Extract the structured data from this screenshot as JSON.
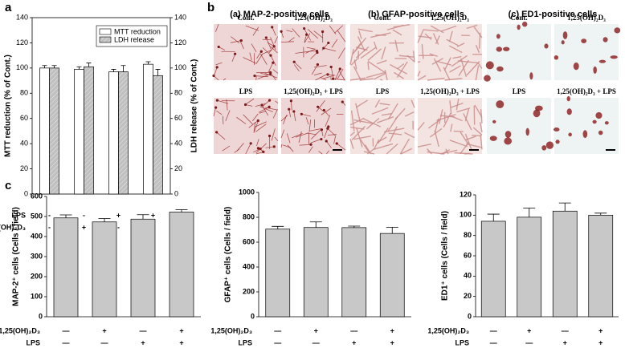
{
  "panels": [
    "a",
    "b",
    "c"
  ],
  "chart_data": [
    {
      "type": "bar",
      "ylabel": "MTT reduction (% of Cont.)",
      "y2label": "LDH release (% of Cont.)",
      "ylim": [
        0,
        140
      ],
      "yticks": [
        0,
        20,
        40,
        60,
        80,
        100,
        120,
        140
      ],
      "y2lim": [
        0,
        140
      ],
      "y2ticks": [
        0,
        20,
        40,
        60,
        80,
        100,
        120,
        140
      ],
      "legend": "upper right",
      "series": [
        {
          "name": "MTT reduction",
          "color": "#ffffff",
          "values": [
            100,
            99,
            97,
            103
          ],
          "errors": [
            2,
            2,
            2,
            2
          ]
        },
        {
          "name": "LDH release",
          "color": "#c0c0c0",
          "hatch": true,
          "axis": "y2",
          "values": [
            100,
            101,
            97,
            94
          ],
          "errors": [
            2,
            3,
            5,
            5
          ]
        }
      ],
      "rows": [
        {
          "label": "LPS",
          "marks": [
            "-",
            "-",
            "+",
            "+"
          ]
        },
        {
          "label": "1,25(OH)₂D₃",
          "marks": [
            "-",
            "+",
            "-",
            "+"
          ]
        }
      ]
    },
    {
      "type": "bar",
      "ylabel": "MAP-2⁺ cells (Cells / field)",
      "ylim": [
        0,
        600
      ],
      "yticks": [
        0,
        100,
        200,
        300,
        400,
        500,
        600
      ],
      "color": "#c8c8c8",
      "values": [
        493,
        473,
        487,
        522
      ],
      "errors": [
        15,
        17,
        22,
        12
      ],
      "rows": [
        {
          "label": "1,25(OH)₂D₃",
          "marks": [
            "—",
            "+",
            "—",
            "+"
          ]
        },
        {
          "label": "LPS",
          "marks": [
            "—",
            "—",
            "+",
            "+"
          ]
        }
      ]
    },
    {
      "type": "bar",
      "ylabel": "GFAP⁺ cells (Cells / field)",
      "ylim": [
        0,
        1000
      ],
      "yticks": [
        0,
        200,
        400,
        600,
        800,
        1000
      ],
      "color": "#c8c8c8",
      "values": [
        705,
        718,
        717,
        670
      ],
      "errors": [
        22,
        45,
        12,
        50
      ],
      "rows": [
        {
          "label": "1,25(OH)₂D₃",
          "marks": [
            "—",
            "+",
            "—",
            "+"
          ]
        },
        {
          "label": "LPS",
          "marks": [
            "—",
            "—",
            "+",
            "+"
          ]
        }
      ]
    },
    {
      "type": "bar",
      "ylabel": "ED1⁺ cells (Cells / field)",
      "ylim": [
        0,
        120
      ],
      "yticks": [
        0,
        20,
        40,
        60,
        80,
        100,
        120
      ],
      "color": "#c8c8c8",
      "values": [
        94,
        98,
        104,
        100
      ],
      "errors": [
        7,
        9,
        8,
        2
      ],
      "rows": [
        {
          "label": "1,25(OH)₂D₃",
          "marks": [
            "—",
            "+",
            "—",
            "+"
          ]
        },
        {
          "label": "LPS",
          "marks": [
            "—",
            "—",
            "+",
            "+"
          ]
        }
      ]
    }
  ],
  "micrographs": {
    "groups": [
      "(a) MAP-2-positive cells",
      "(b) GFAP-positive cells",
      "(c) ED1-positive cells"
    ],
    "labels": [
      "Cont.",
      "1,25(OH)₂D₃",
      "LPS",
      "1,25(OH)₂D₃ + LPS"
    ]
  }
}
